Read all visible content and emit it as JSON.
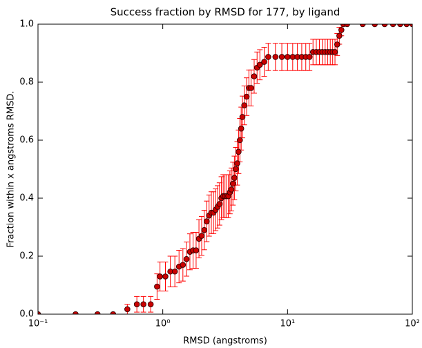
{
  "chart_data": {
    "type": "scatter",
    "title": "Success fraction by RMSD for 177, by ligand",
    "xlabel": "RMSD (angstroms)",
    "ylabel": "Fraction within x angstroms RMSD.",
    "xscale": "log",
    "xlim": [
      0.1,
      100
    ],
    "ylim": [
      0,
      1
    ],
    "xticks": [
      {
        "value": 0.1,
        "label": "10⁻¹"
      },
      {
        "value": 1,
        "label": "10⁰"
      },
      {
        "value": 10,
        "label": "10¹"
      },
      {
        "value": 100,
        "label": "10²"
      }
    ],
    "yticks": [
      {
        "value": 0,
        "label": "0.0"
      },
      0.2,
      0.4,
      0.6,
      0.8,
      {
        "value": 1,
        "label": "1.0"
      }
    ],
    "color": "#cc0000",
    "error_color": "#ff0000",
    "x": [
      0.1,
      0.2,
      0.3,
      0.4,
      0.52,
      0.62,
      0.7,
      0.8,
      0.9,
      0.95,
      1.05,
      1.15,
      1.25,
      1.35,
      1.45,
      1.55,
      1.65,
      1.75,
      1.85,
      1.95,
      2.05,
      2.15,
      2.25,
      2.35,
      2.45,
      2.55,
      2.65,
      2.75,
      2.85,
      2.95,
      3.05,
      3.15,
      3.25,
      3.35,
      3.45,
      3.55,
      3.65,
      3.75,
      3.85,
      3.95,
      4.05,
      4.15,
      4.25,
      4.35,
      4.5,
      4.7,
      4.9,
      5.1,
      5.4,
      5.7,
      6.0,
      6.5,
      7,
      8,
      9,
      10,
      11,
      12,
      13,
      14,
      15,
      16,
      17,
      18,
      19,
      20,
      21,
      22,
      23,
      24,
      25,
      26,
      27,
      28,
      30,
      40,
      50,
      60,
      70,
      80,
      90,
      100
    ],
    "values": [
      0,
      0,
      0,
      0,
      0.017,
      0.034,
      0.034,
      0.034,
      0.095,
      0.13,
      0.13,
      0.147,
      0.147,
      0.164,
      0.17,
      0.19,
      0.215,
      0.22,
      0.22,
      0.26,
      0.27,
      0.29,
      0.32,
      0.34,
      0.35,
      0.35,
      0.36,
      0.37,
      0.38,
      0.4,
      0.407,
      0.407,
      0.407,
      0.407,
      0.42,
      0.43,
      0.45,
      0.47,
      0.5,
      0.52,
      0.56,
      0.6,
      0.64,
      0.68,
      0.72,
      0.75,
      0.78,
      0.78,
      0.82,
      0.85,
      0.86,
      0.87,
      0.887,
      0.887,
      0.887,
      0.887,
      0.887,
      0.887,
      0.887,
      0.887,
      0.887,
      0.904,
      0.904,
      0.904,
      0.904,
      0.904,
      0.904,
      0.904,
      0.904,
      0.904,
      0.93,
      0.96,
      0.98,
      1,
      1,
      1,
      1,
      1,
      1,
      1,
      1,
      1
    ],
    "errors": [
      0,
      0,
      0,
      0,
      0.017,
      0.027,
      0.027,
      0.027,
      0.044,
      0.05,
      0.05,
      0.053,
      0.053,
      0.056,
      0.056,
      0.059,
      0.062,
      0.062,
      0.062,
      0.066,
      0.067,
      0.068,
      0.07,
      0.071,
      0.072,
      0.072,
      0.072,
      0.073,
      0.073,
      0.074,
      0.074,
      0.074,
      0.074,
      0.074,
      0.074,
      0.074,
      0.074,
      0.075,
      0.075,
      0.075,
      0.075,
      0.075,
      0.074,
      0.072,
      0.067,
      0.065,
      0.062,
      0.062,
      0.058,
      0.054,
      0.052,
      0.05,
      0.047,
      0.047,
      0.047,
      0.047,
      0.047,
      0.047,
      0.047,
      0.047,
      0.047,
      0.044,
      0.044,
      0.044,
      0.044,
      0.044,
      0.044,
      0.044,
      0.044,
      0.044,
      0.038,
      0.029,
      0.02,
      0,
      0,
      0,
      0,
      0,
      0,
      0,
      0,
      0
    ]
  }
}
